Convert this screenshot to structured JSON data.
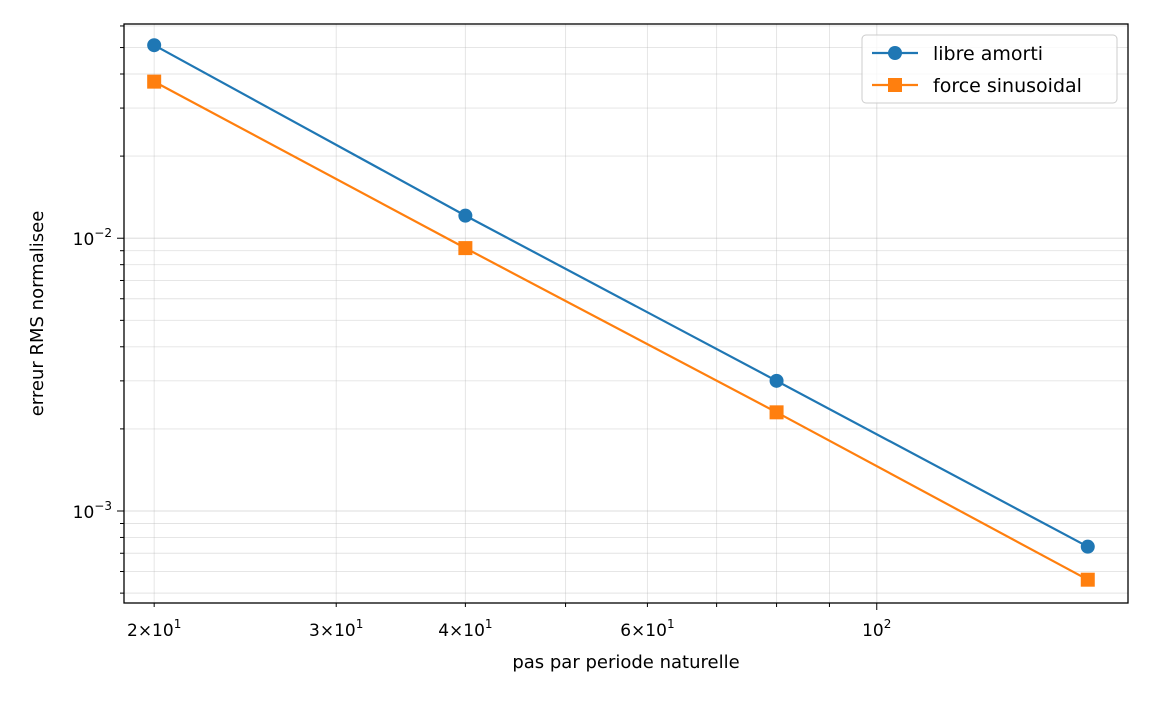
{
  "chart_data": {
    "type": "line",
    "xlabel": "pas par periode naturelle",
    "ylabel": "erreur RMS normalisee",
    "xscale": "log",
    "yscale": "log",
    "xlim": [
      18.7,
      175
    ],
    "ylim": [
      0.00046,
      0.061
    ],
    "grid": true,
    "legend_position": "top-right",
    "x": [
      20,
      40,
      80,
      160
    ],
    "series": [
      {
        "name": "libre amorti",
        "values": [
          0.051,
          0.0121,
          0.003,
          0.00074
        ],
        "color": "#1f77b4",
        "marker": "circle"
      },
      {
        "name": "force sinusoidal",
        "values": [
          0.0375,
          0.0092,
          0.0023,
          0.00056
        ],
        "color": "#ff7f0e",
        "marker": "square"
      }
    ],
    "x_ticks": [
      {
        "value": 20,
        "mantissa": "2",
        "base": "10",
        "exp": "1"
      },
      {
        "value": 30,
        "mantissa": "3",
        "base": "10",
        "exp": "1"
      },
      {
        "value": 40,
        "mantissa": "4",
        "base": "10",
        "exp": "1"
      },
      {
        "value": 60,
        "mantissa": "6",
        "base": "10",
        "exp": "1"
      },
      {
        "value": 100,
        "mantissa": "",
        "base": "10",
        "exp": "2"
      }
    ],
    "y_ticks": [
      {
        "value": 0.01,
        "base": "10",
        "exp": "−2"
      },
      {
        "value": 0.001,
        "base": "10",
        "exp": "−3"
      }
    ]
  }
}
